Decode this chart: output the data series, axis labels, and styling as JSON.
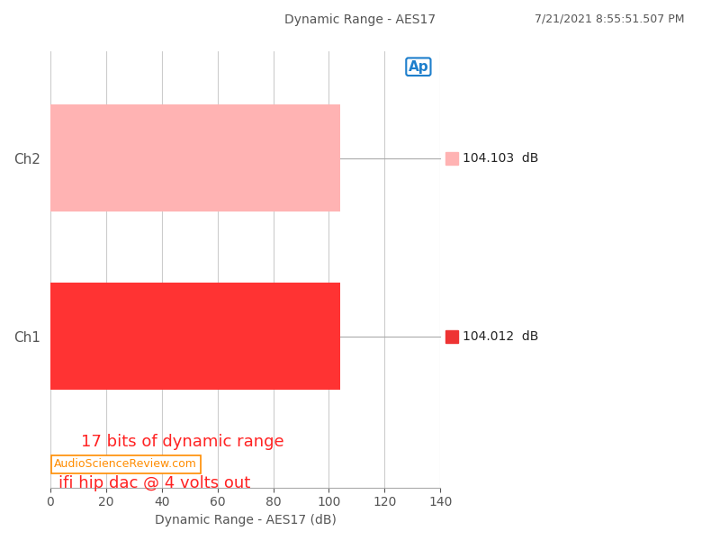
{
  "title_top": "Dynamic Range - AES17",
  "timestamp": "7/21/2021 8:55:51.507 PM",
  "xlabel": "Dynamic Range - AES17 (dB)",
  "channels": [
    "Ch1",
    "Ch2"
  ],
  "values": [
    104.012,
    104.103
  ],
  "bar_colors": [
    "#FF3333",
    "#FFB3B3"
  ],
  "legend_colors": [
    "#EE3333",
    "#FFB3B3"
  ],
  "xlim": [
    0,
    140
  ],
  "xticks": [
    0,
    20,
    40,
    60,
    80,
    100,
    120,
    140
  ],
  "annotation_line1": "ifi hip dac @ 4 volts out",
  "annotation_line2": "17 bits of dynamic range",
  "annotation_color": "#FF2222",
  "watermark": "AudioScienceReview.com",
  "watermark_color": "#FF8C00",
  "value_labels": [
    "104.012  dB",
    "104.103  dB"
  ],
  "bar_height": 0.6,
  "fig_width": 8.0,
  "fig_height": 6.0,
  "background_color": "#FFFFFF",
  "grid_color": "#CCCCCC",
  "title_color": "#555555",
  "timestamp_color": "#555555",
  "xlabel_color": "#555555"
}
